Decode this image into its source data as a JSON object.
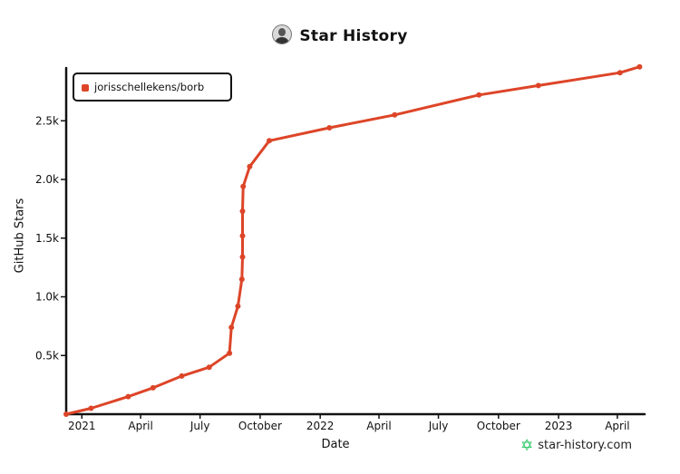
{
  "title": "Star History",
  "watermark": "star-history.com",
  "icons": {
    "avatar": "avatar-icon",
    "watermark": "star-outline-icon"
  },
  "chart_data": {
    "type": "line",
    "title": "Star History",
    "xlabel": "Date",
    "ylabel": "GitHub Stars",
    "legend_position": "top-left",
    "grid": false,
    "xlim": [
      "2020-12-08",
      "2023-05-10"
    ],
    "ylim": [
      0,
      2950
    ],
    "x_ticks": [
      {
        "date": "2021-01-01",
        "label": "2021"
      },
      {
        "date": "2021-04-01",
        "label": "April"
      },
      {
        "date": "2021-07-01",
        "label": "July"
      },
      {
        "date": "2021-10-01",
        "label": "October"
      },
      {
        "date": "2022-01-01",
        "label": "2022"
      },
      {
        "date": "2022-04-01",
        "label": "April"
      },
      {
        "date": "2022-07-01",
        "label": "July"
      },
      {
        "date": "2022-10-01",
        "label": "October"
      },
      {
        "date": "2023-01-01",
        "label": "2023"
      },
      {
        "date": "2023-04-01",
        "label": "April"
      }
    ],
    "y_ticks": [
      {
        "value": 500,
        "label": "0.5k"
      },
      {
        "value": 1000,
        "label": "1.0k"
      },
      {
        "value": 1500,
        "label": "1.5k"
      },
      {
        "value": 2000,
        "label": "2.0k"
      },
      {
        "value": 2500,
        "label": "2.5k"
      }
    ],
    "series": [
      {
        "name": "jorisschellekens/borb",
        "color": "#dd4528",
        "points": [
          [
            "2020-12-08",
            0
          ],
          [
            "2021-01-15",
            50
          ],
          [
            "2021-03-13",
            150
          ],
          [
            "2021-04-20",
            225
          ],
          [
            "2021-06-03",
            325
          ],
          [
            "2021-07-15",
            400
          ],
          [
            "2021-08-15",
            520
          ],
          [
            "2021-08-18",
            740
          ],
          [
            "2021-08-28",
            920
          ],
          [
            "2021-09-03",
            1150
          ],
          [
            "2021-09-04",
            1340
          ],
          [
            "2021-09-04",
            1520
          ],
          [
            "2021-09-04",
            1730
          ],
          [
            "2021-09-05",
            1940
          ],
          [
            "2021-09-15",
            2110
          ],
          [
            "2021-10-15",
            2330
          ],
          [
            "2022-01-15",
            2440
          ],
          [
            "2022-04-25",
            2550
          ],
          [
            "2022-09-01",
            2720
          ],
          [
            "2022-12-01",
            2800
          ],
          [
            "2023-04-05",
            2910
          ],
          [
            "2023-05-05",
            2960
          ]
        ]
      }
    ]
  }
}
